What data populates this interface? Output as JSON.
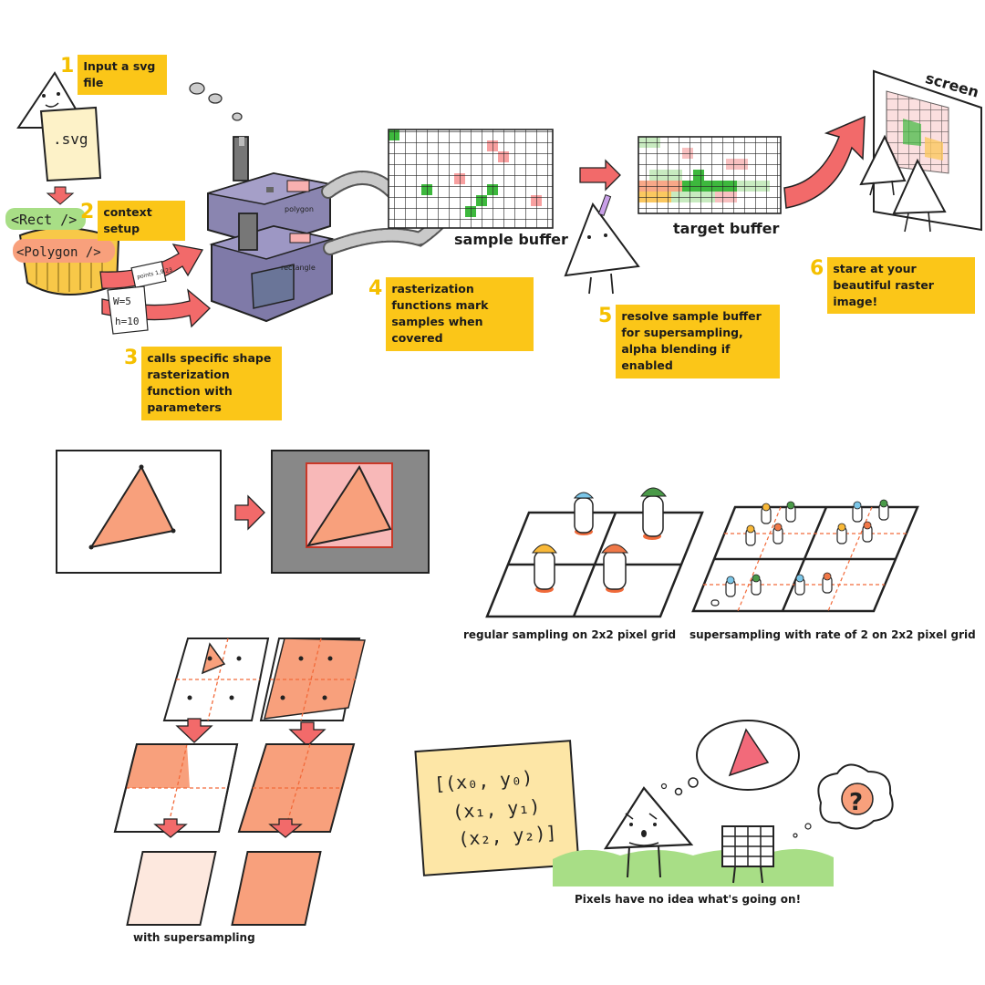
{
  "steps": [
    {
      "num": "1",
      "text": "Input a svg file"
    },
    {
      "num": "2",
      "text": "context setup"
    },
    {
      "num": "3",
      "text": "calls specific shape rasterization function with parameters"
    },
    {
      "num": "4",
      "text": "rasterization functions mark samples when covered"
    },
    {
      "num": "5",
      "text": "resolve sample buffer for supersampling, alpha blending if enabled"
    },
    {
      "num": "6",
      "text": "stare at your beautiful raster image!"
    }
  ],
  "labels": {
    "svg_file": ".svg",
    "rect_tag": "<Rect />",
    "polygon_tag": "<Polygon />",
    "param_w": "W=5",
    "param_h": "h=10",
    "param_points": "points 1,9,23",
    "machine_polygon": "polygon",
    "machine_rectangle": "rectangle",
    "sample_buffer": "sample buffer",
    "target_buffer": "target buffer",
    "screen": "screen"
  },
  "captions": {
    "regular": "regular sampling on 2x2 pixel grid",
    "super": "supersampling with rate of 2 on 2x2 pixel grid",
    "with_super": "with supersampling",
    "pixels": "Pixels have no idea what's going on!"
  },
  "coords": {
    "line1": "[(x₀, y₀)",
    "line2": "(x₁, y₁)",
    "line3": "(x₂, y₂)]"
  },
  "colors": {
    "highlight": "#fbc618",
    "salmon": "#f8a07c",
    "red_arrow": "#f26a6a",
    "machine": "#7f7aa8",
    "grass": "#a8de86"
  }
}
